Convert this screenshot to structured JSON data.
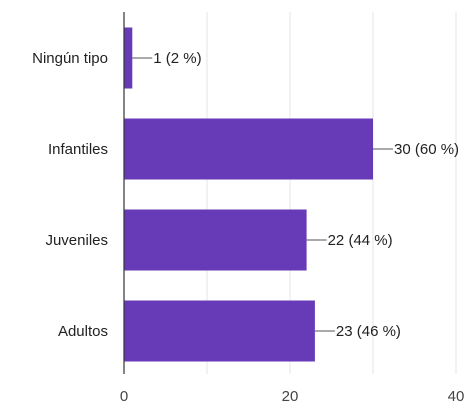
{
  "chart_data": {
    "type": "bar",
    "orientation": "horizontal",
    "categories": [
      "Ningún tipo",
      "Infantiles",
      "Juveniles",
      "Adultos"
    ],
    "values": [
      1,
      30,
      22,
      23
    ],
    "data_labels": [
      "1 (2 %)",
      "30 (60 %)",
      "22 (44 %)",
      "23 (46 %)"
    ],
    "xlim": [
      0,
      40
    ],
    "xticks": [
      0,
      20,
      40
    ],
    "grid": "vertical",
    "legend": "none",
    "bar_color": "#673ab7",
    "grid_color": "#e6e6e6",
    "axis_color": "#333333"
  }
}
